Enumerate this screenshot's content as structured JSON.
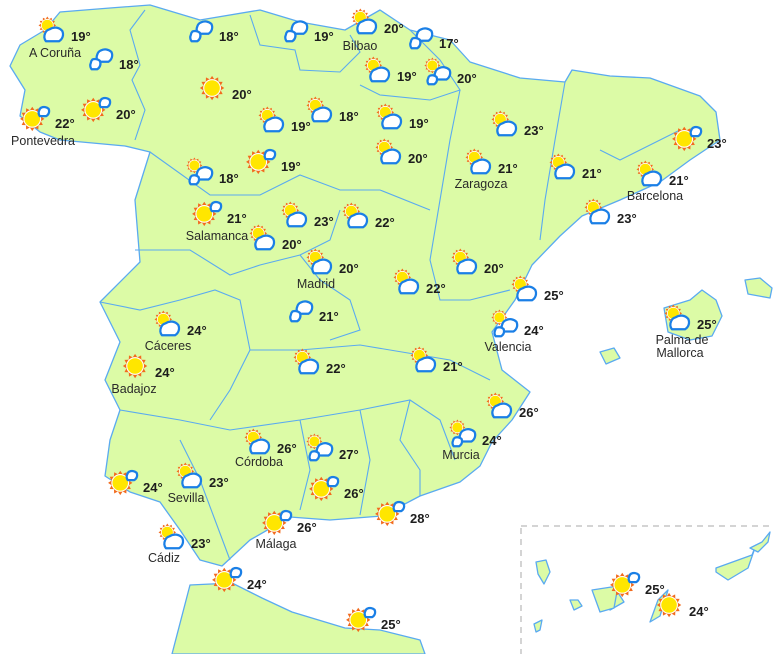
{
  "colors": {
    "land": "#dcfba6",
    "border": "#5aaaf0",
    "sun_rays": "#f26b1d",
    "sun_core": "#ffe600",
    "cloud_stroke": "#1a7fe6",
    "cloud_fill": "#ffffff",
    "text": "#1d1d1d"
  },
  "forecasts": [
    {
      "icon": "sun_cloud",
      "temp": "19°"
    },
    {
      "icon": "clouds",
      "temp": "18°"
    },
    {
      "icon": "sun_small_cloud",
      "temp": "22°"
    },
    {
      "icon": "sun_small_cloud",
      "temp": "20°"
    },
    {
      "icon": "clouds",
      "temp": "18°"
    },
    {
      "icon": "clouds",
      "temp": "19°"
    },
    {
      "icon": "sun_cloud",
      "temp": "20°"
    },
    {
      "icon": "clouds",
      "temp": "17°"
    },
    {
      "icon": "sun_cloud",
      "temp": "19°"
    },
    {
      "icon": "sun_clouds",
      "temp": "20°"
    },
    {
      "icon": "sun",
      "temp": "20°"
    },
    {
      "icon": "sun_cloud",
      "temp": "19°"
    },
    {
      "icon": "sun_cloud",
      "temp": "18°"
    },
    {
      "icon": "sun_cloud",
      "temp": "19°"
    },
    {
      "icon": "sun_cloud",
      "temp": "23°"
    },
    {
      "icon": "sun_small_cloud",
      "temp": "23°"
    },
    {
      "icon": "sun_clouds",
      "temp": "18°"
    },
    {
      "icon": "sun_small_cloud",
      "temp": "19°"
    },
    {
      "icon": "sun_cloud",
      "temp": "20°"
    },
    {
      "icon": "sun_cloud",
      "temp": "21°"
    },
    {
      "icon": "sun_cloud",
      "temp": "21°"
    },
    {
      "icon": "sun_cloud",
      "temp": "21°"
    },
    {
      "icon": "sun_small_cloud",
      "temp": "21°"
    },
    {
      "icon": "sun_cloud",
      "temp": "23°"
    },
    {
      "icon": "sun_cloud",
      "temp": "22°"
    },
    {
      "icon": "sun_cloud",
      "temp": "23°"
    },
    {
      "icon": "sun_cloud",
      "temp": "20°"
    },
    {
      "icon": "sun_cloud",
      "temp": "20°"
    },
    {
      "icon": "sun_cloud",
      "temp": "20°"
    },
    {
      "icon": "sun_cloud",
      "temp": "22°"
    },
    {
      "icon": "sun_cloud",
      "temp": "25°"
    },
    {
      "icon": "clouds",
      "temp": "21°"
    },
    {
      "icon": "sun_cloud",
      "temp": "25°"
    },
    {
      "icon": "sun_cloud",
      "temp": "24°"
    },
    {
      "icon": "sun_clouds",
      "temp": "24°"
    },
    {
      "icon": "sun",
      "temp": "24°"
    },
    {
      "icon": "sun_cloud",
      "temp": "22°"
    },
    {
      "icon": "sun_cloud",
      "temp": "21°"
    },
    {
      "icon": "sun_cloud",
      "temp": "26°"
    },
    {
      "icon": "sun_clouds",
      "temp": "24°"
    },
    {
      "icon": "sun_cloud",
      "temp": "26°"
    },
    {
      "icon": "sun_clouds",
      "temp": "27°"
    },
    {
      "icon": "sun_small_cloud",
      "temp": "24°"
    },
    {
      "icon": "sun_cloud",
      "temp": "23°"
    },
    {
      "icon": "sun_small_cloud",
      "temp": "26°"
    },
    {
      "icon": "sun_small_cloud",
      "temp": "28°"
    },
    {
      "icon": "sun_cloud",
      "temp": "23°"
    },
    {
      "icon": "sun_small_cloud",
      "temp": "26°"
    },
    {
      "icon": "sun_small_cloud",
      "temp": "24°"
    },
    {
      "icon": "sun_small_cloud",
      "temp": "25°"
    },
    {
      "icon": "sun_small_cloud",
      "temp": "25°"
    },
    {
      "icon": "sun",
      "temp": "24°"
    }
  ],
  "cities": [
    "A Coruña",
    "Pontevedra",
    "Bilbao",
    "Zaragoza",
    "Barcelona",
    "Salamanca",
    "Madrid",
    "Cáceres",
    "Valencia",
    "Palma de",
    "Mallorca",
    "Badajoz",
    "Murcia",
    "Córdoba",
    "Sevilla",
    "Cádiz",
    "Málaga"
  ]
}
